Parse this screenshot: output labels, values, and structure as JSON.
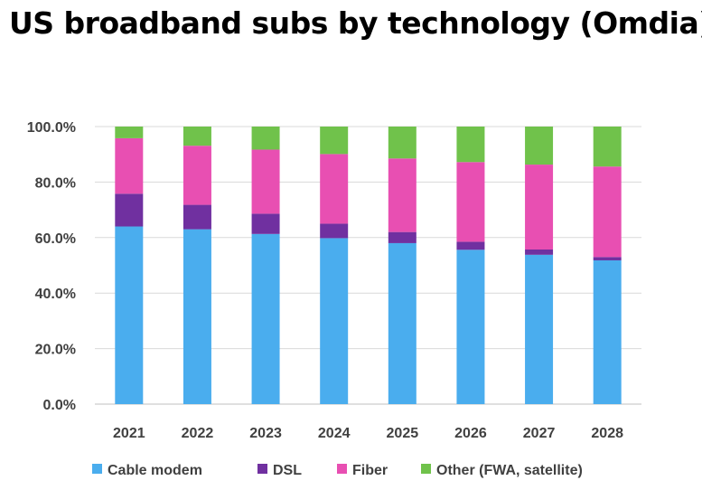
{
  "chart_data": {
    "type": "bar",
    "stacked": true,
    "title": "US broadband subs by technology (Omdia)",
    "xlabel": "",
    "ylabel": "",
    "categories": [
      "2021",
      "2022",
      "2023",
      "2024",
      "2025",
      "2026",
      "2027",
      "2028"
    ],
    "y_ticks": [
      "0.0%",
      "20.0%",
      "40.0%",
      "60.0%",
      "80.0%",
      "100.0%"
    ],
    "ylim": [
      0,
      100
    ],
    "grid": true,
    "legend_position": "bottom",
    "series": [
      {
        "name": "Cable modem",
        "color": "#4AADEE",
        "values": [
          64.0,
          63.0,
          61.3,
          59.8,
          58.0,
          55.6,
          53.8,
          51.8
        ]
      },
      {
        "name": "DSL",
        "color": "#7030A0",
        "values": [
          11.8,
          8.8,
          7.3,
          5.2,
          4.0,
          2.9,
          1.9,
          1.2
        ]
      },
      {
        "name": "Fiber",
        "color": "#E84FB2",
        "values": [
          20.0,
          21.3,
          23.1,
          25.1,
          26.5,
          28.7,
          30.6,
          32.6
        ]
      },
      {
        "name": "Other (FWA, satellite)",
        "color": "#70C24B",
        "values": [
          4.2,
          6.9,
          8.3,
          9.9,
          11.5,
          12.8,
          13.7,
          14.4
        ]
      }
    ]
  }
}
